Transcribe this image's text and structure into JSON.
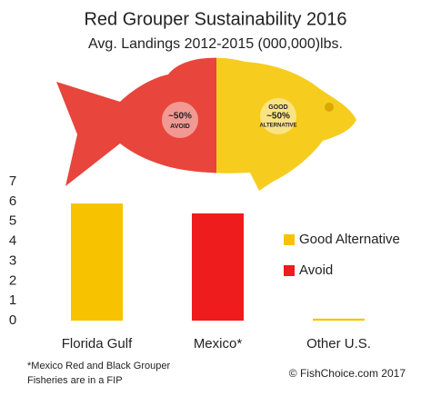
{
  "chart_data": {
    "type": "bar",
    "title": "Red Grouper Sustainability 2016",
    "subtitle": "Avg. Landings 2012-2015 (000,000)lbs.",
    "categories": [
      "Florida Gulf",
      "Mexico*",
      "Other U.S."
    ],
    "series": [
      {
        "name": "Good Alternative",
        "color": "#f7c200",
        "values": [
          5.9,
          null,
          0.1
        ]
      },
      {
        "name": "Avoid",
        "color": "#ee1c1c",
        "values": [
          null,
          5.4,
          null
        ]
      }
    ],
    "ylim": [
      0,
      7
    ],
    "yticks": [
      0,
      1,
      2,
      3,
      4,
      5,
      6,
      7
    ],
    "grid": false,
    "legend": "right",
    "annotations": {
      "avoid": [
        "~50%",
        "AVOID"
      ],
      "good": [
        "GOOD",
        "~50%",
        "ALTERNATIVE"
      ]
    },
    "footnote": [
      "*Mexico Red and Black Grouper",
      "Fisheries are in a FIP"
    ],
    "source": "© FishChoice.com 2017"
  }
}
